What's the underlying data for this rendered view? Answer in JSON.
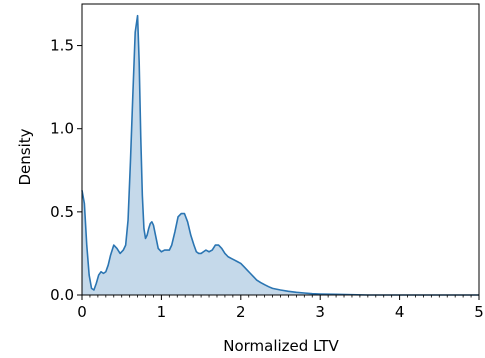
{
  "chart_data": {
    "type": "area",
    "title": "",
    "xlabel": "Normalized  LTV",
    "ylabel": "Density",
    "xlim": [
      0,
      5
    ],
    "ylim": [
      0,
      1.75
    ],
    "xticks": [
      0,
      1,
      2,
      3,
      4,
      5
    ],
    "xtick_labels": [
      "0",
      "1",
      "2",
      "3",
      "4",
      "5"
    ],
    "yticks": [
      0.0,
      0.5,
      1.0,
      1.5
    ],
    "ytick_labels": [
      "0.0",
      "0.5",
      "1.0",
      "1.5"
    ],
    "minor_xticks": true,
    "grid": false,
    "legend": "none",
    "series": [
      {
        "color": "#2b75b2",
        "fill": "#c5d9ea",
        "x": [
          0.0,
          0.03,
          0.06,
          0.09,
          0.12,
          0.15,
          0.18,
          0.21,
          0.24,
          0.27,
          0.3,
          0.33,
          0.36,
          0.4,
          0.44,
          0.48,
          0.52,
          0.55,
          0.58,
          0.61,
          0.64,
          0.67,
          0.7,
          0.72,
          0.74,
          0.76,
          0.78,
          0.8,
          0.82,
          0.84,
          0.86,
          0.88,
          0.9,
          0.93,
          0.96,
          1.0,
          1.04,
          1.07,
          1.1,
          1.13,
          1.17,
          1.21,
          1.25,
          1.29,
          1.33,
          1.37,
          1.41,
          1.44,
          1.47,
          1.5,
          1.53,
          1.56,
          1.6,
          1.64,
          1.68,
          1.72,
          1.76,
          1.8,
          1.84,
          1.88,
          1.92,
          1.96,
          2.0,
          2.04,
          2.08,
          2.12,
          2.16,
          2.2,
          2.25,
          2.3,
          2.35,
          2.4,
          2.5,
          2.6,
          2.7,
          2.8,
          2.9,
          3.0,
          3.2,
          3.4,
          3.6,
          3.8,
          4.0,
          4.2,
          4.4,
          4.6,
          4.8,
          5.0
        ],
        "y": [
          0.63,
          0.55,
          0.3,
          0.12,
          0.04,
          0.03,
          0.07,
          0.12,
          0.14,
          0.13,
          0.14,
          0.18,
          0.24,
          0.3,
          0.28,
          0.25,
          0.27,
          0.3,
          0.45,
          0.8,
          1.2,
          1.58,
          1.68,
          1.4,
          0.95,
          0.6,
          0.4,
          0.34,
          0.36,
          0.4,
          0.43,
          0.44,
          0.42,
          0.35,
          0.28,
          0.26,
          0.27,
          0.27,
          0.27,
          0.3,
          0.38,
          0.47,
          0.49,
          0.49,
          0.44,
          0.36,
          0.3,
          0.26,
          0.25,
          0.25,
          0.26,
          0.27,
          0.26,
          0.27,
          0.3,
          0.3,
          0.28,
          0.25,
          0.23,
          0.22,
          0.21,
          0.2,
          0.19,
          0.17,
          0.15,
          0.13,
          0.11,
          0.09,
          0.075,
          0.062,
          0.05,
          0.04,
          0.03,
          0.022,
          0.016,
          0.012,
          0.008,
          0.006,
          0.004,
          0.002,
          0.0,
          0.0,
          0.0,
          0.0,
          0.0,
          0.0,
          0.0,
          0.0
        ]
      }
    ]
  }
}
